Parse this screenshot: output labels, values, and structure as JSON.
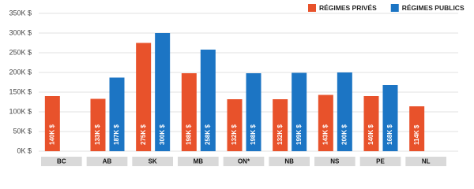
{
  "chart_data": {
    "type": "bar",
    "categories": [
      "BC",
      "AB",
      "SK",
      "MB",
      "ON*",
      "NB",
      "NS",
      "PE",
      "NL"
    ],
    "series": [
      {
        "name": "RÉGIMES PRIVÉS",
        "color": "#e8522b",
        "values": [
          140,
          133,
          275,
          198,
          132,
          132,
          143,
          140,
          114
        ],
        "value_labels": [
          "140K $",
          "133K $",
          "275K $",
          "198K $",
          "132K $",
          "132K $",
          "143K $",
          "140K $",
          "114K $"
        ]
      },
      {
        "name": "RÉGIMES PUBLICS",
        "color": "#1c75c4",
        "values": [
          null,
          187,
          300,
          258,
          198,
          199,
          200,
          168,
          null
        ],
        "value_labels": [
          null,
          "187K $",
          "300K $",
          "258K $",
          "198K $",
          "199K $",
          "200K $",
          "168K $",
          null
        ]
      }
    ],
    "ylim": [
      0,
      350
    ],
    "yticks": [
      {
        "value": 0,
        "label": "0K $"
      },
      {
        "value": 50,
        "label": "50K $"
      },
      {
        "value": 100,
        "label": "100K $"
      },
      {
        "value": 150,
        "label": "150K $"
      },
      {
        "value": 200,
        "label": "200K $"
      },
      {
        "value": 250,
        "label": "250K $"
      },
      {
        "value": 300,
        "label": "300K $"
      },
      {
        "value": 350,
        "label": "350K $"
      }
    ],
    "grid": true,
    "legend": "top-right"
  }
}
